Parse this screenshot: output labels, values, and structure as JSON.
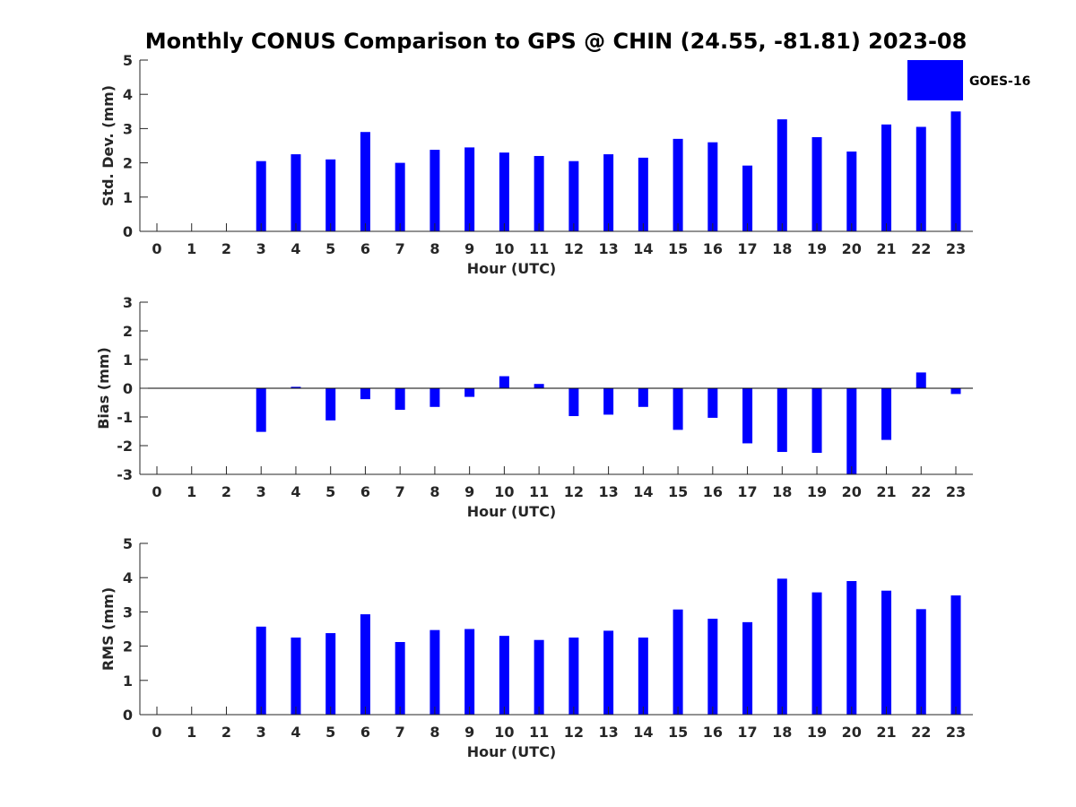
{
  "title": "Monthly CONUS Comparison to GPS @ CHIN (24.55, -81.81) 2023-08",
  "legend": {
    "label": "GOES-16",
    "color": "#0000ff",
    "placement": "top-right"
  },
  "chart_data": [
    {
      "type": "bar",
      "xlabel": "Hour (UTC)",
      "ylabel": "Std. Dev. (mm)",
      "ylim": [
        0,
        5
      ],
      "yticks": [
        "0",
        "1",
        "2",
        "3",
        "4",
        "5"
      ],
      "categories": [
        "0",
        "1",
        "2",
        "3",
        "4",
        "5",
        "6",
        "7",
        "8",
        "9",
        "10",
        "11",
        "12",
        "13",
        "14",
        "15",
        "16",
        "17",
        "18",
        "19",
        "20",
        "21",
        "22",
        "23"
      ],
      "series": [
        {
          "name": "GOES-16",
          "values": [
            null,
            null,
            null,
            2.05,
            2.25,
            2.1,
            2.9,
            2.0,
            2.38,
            2.45,
            2.3,
            2.2,
            2.05,
            2.25,
            2.15,
            2.7,
            2.6,
            1.92,
            3.27,
            2.75,
            2.33,
            3.12,
            3.05,
            3.5
          ]
        }
      ],
      "grid": false
    },
    {
      "type": "bar",
      "xlabel": "Hour (UTC)",
      "ylabel": "Bias (mm)",
      "ylim": [
        -3,
        3
      ],
      "yticks": [
        "-3",
        "-2",
        "-1",
        "0",
        "1",
        "2",
        "3"
      ],
      "categories": [
        "0",
        "1",
        "2",
        "3",
        "4",
        "5",
        "6",
        "7",
        "8",
        "9",
        "10",
        "11",
        "12",
        "13",
        "14",
        "15",
        "16",
        "17",
        "18",
        "19",
        "20",
        "21",
        "22",
        "23"
      ],
      "series": [
        {
          "name": "GOES-16",
          "values": [
            null,
            null,
            null,
            -1.52,
            0.05,
            -1.12,
            -0.38,
            -0.75,
            -0.65,
            -0.3,
            0.42,
            0.15,
            -0.97,
            -0.92,
            -0.65,
            -1.45,
            -1.03,
            -1.92,
            -2.22,
            -2.25,
            -3.0,
            -1.8,
            0.55,
            -0.2
          ]
        }
      ],
      "grid": false
    },
    {
      "type": "bar",
      "xlabel": "Hour (UTC)",
      "ylabel": "RMS (mm)",
      "ylim": [
        0,
        5
      ],
      "yticks": [
        "0",
        "1",
        "2",
        "3",
        "4",
        "5"
      ],
      "categories": [
        "0",
        "1",
        "2",
        "3",
        "4",
        "5",
        "6",
        "7",
        "8",
        "9",
        "10",
        "11",
        "12",
        "13",
        "14",
        "15",
        "16",
        "17",
        "18",
        "19",
        "20",
        "21",
        "22",
        "23"
      ],
      "series": [
        {
          "name": "GOES-16",
          "values": [
            null,
            null,
            null,
            2.57,
            2.25,
            2.38,
            2.93,
            2.12,
            2.47,
            2.5,
            2.3,
            2.18,
            2.25,
            2.45,
            2.25,
            3.07,
            2.8,
            2.7,
            3.97,
            3.57,
            3.9,
            3.62,
            3.08,
            3.48
          ]
        }
      ],
      "grid": false
    }
  ]
}
